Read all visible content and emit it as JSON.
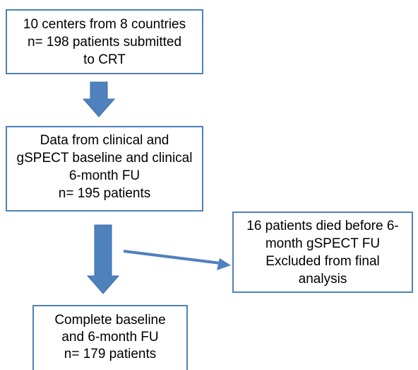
{
  "nodes": [
    {
      "lines": [
        "10 centers from 8 countries",
        "n= 198 patients submitted",
        "to CRT"
      ]
    },
    {
      "lines": [
        "Data from clinical and",
        "gSPECT baseline and clinical",
        "6-month FU",
        "n= 195 patients"
      ]
    },
    {
      "lines": [
        "16 patients died before 6-",
        "month gSPECT FU",
        "Excluded from final",
        "analysis"
      ]
    },
    {
      "lines": [
        "Complete baseline",
        "and 6-month FU",
        "n= 179 patients"
      ]
    }
  ]
}
